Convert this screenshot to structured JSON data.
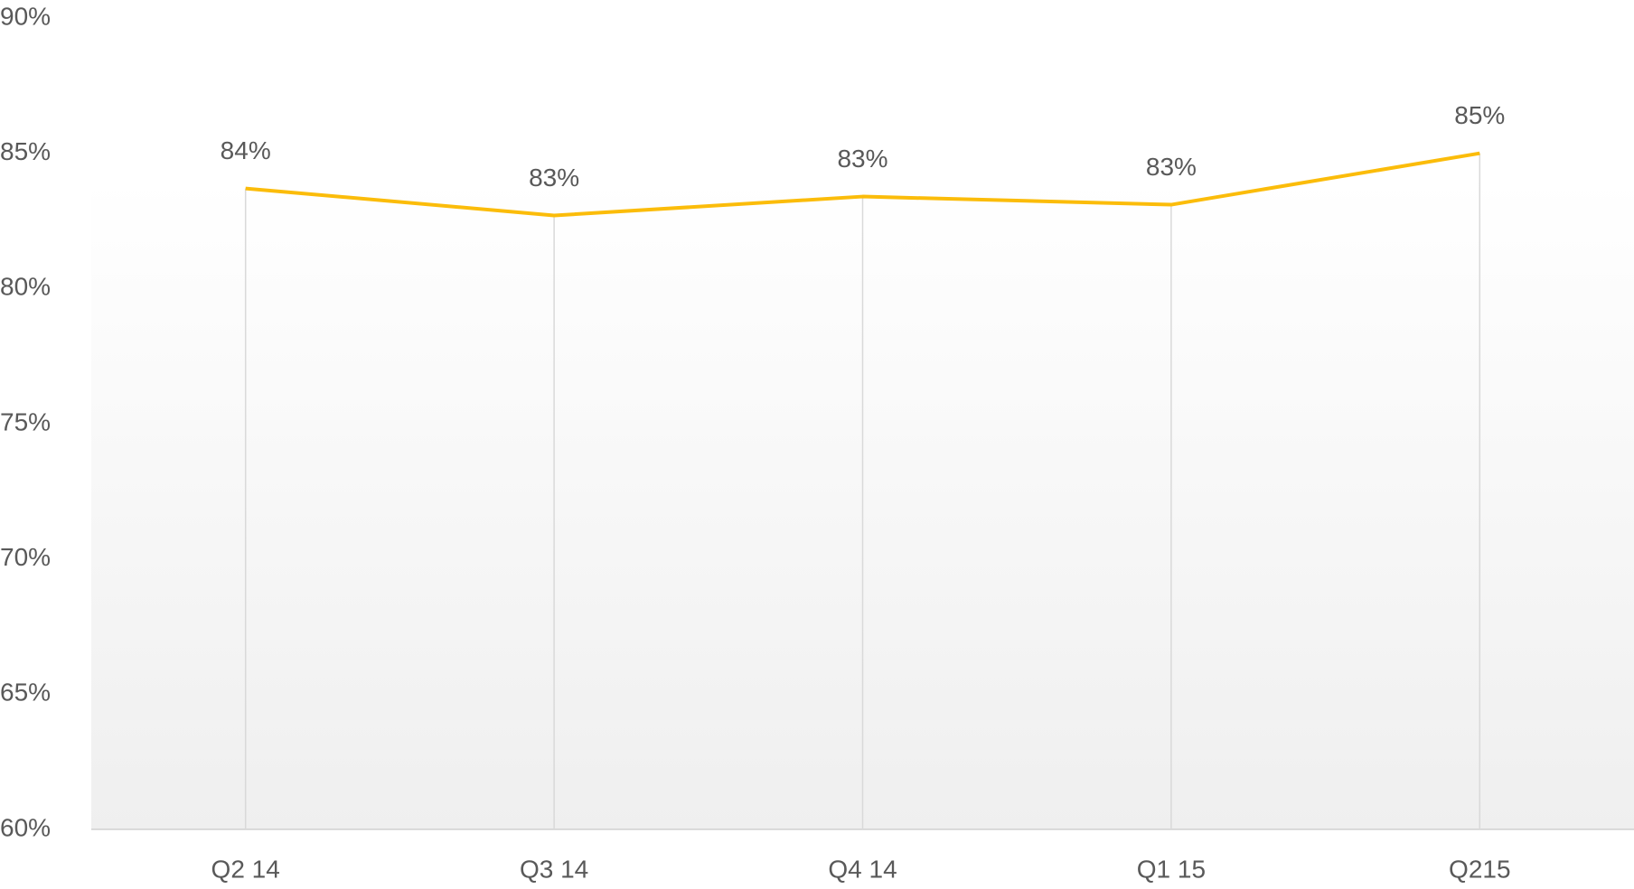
{
  "chart_data": {
    "type": "line",
    "categories": [
      "Q2 14",
      "Q3 14",
      "Q4 14",
      "Q1 15",
      "Q215"
    ],
    "series": [
      {
        "name": "Value",
        "color": "#fbbc0a",
        "values": [
          83.7,
          82.7,
          83.4,
          83.1,
          85.0
        ],
        "value_labels": [
          "84%",
          "83%",
          "83%",
          "83%",
          "85%"
        ]
      }
    ],
    "ylim": [
      60,
      90
    ],
    "yticks": [
      {
        "value": 60,
        "label": "60%"
      },
      {
        "value": 65,
        "label": "65%"
      },
      {
        "value": 70,
        "label": "70%"
      },
      {
        "value": 75,
        "label": "75%"
      },
      {
        "value": 80,
        "label": "80%"
      },
      {
        "value": 85,
        "label": "85%"
      },
      {
        "value": 90,
        "label": "90%"
      }
    ],
    "drop_lines": true
  }
}
